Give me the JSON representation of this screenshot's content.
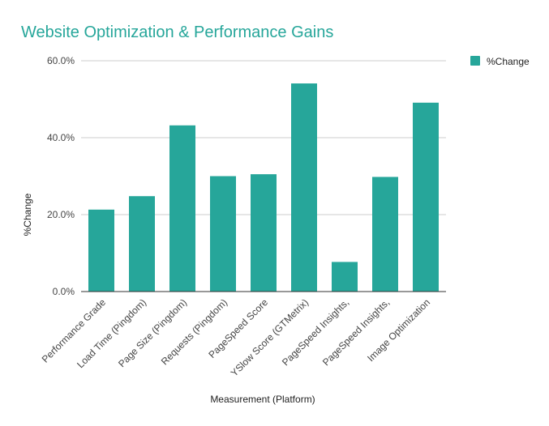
{
  "colors": {
    "bar": "#26a69a",
    "title": "#26a69a",
    "grid": "#cccccc",
    "axis": "#333333"
  },
  "chart_data": {
    "type": "bar",
    "title": "Website Optimization & Performance Gains",
    "xlabel": "Measurement (Platform)",
    "ylabel": "%Change",
    "categories": [
      "Performance Grade",
      "Load Time (Pingdom)",
      "Page Size (Pingdom)",
      "Requests (Pingdom)",
      "PageSpeed Score",
      "YSlow Score (GTMetrix)",
      "PageSpeed Insights,",
      "PageSpeed Insights,",
      "Image Optimization"
    ],
    "series": [
      {
        "name": "%Change",
        "values": [
          21.3,
          24.8,
          43.2,
          30.0,
          30.5,
          54.1,
          7.7,
          29.8,
          49.1
        ]
      }
    ],
    "ylim": [
      0,
      60
    ],
    "yticks": [
      "0.0%",
      "20.0%",
      "40.0%",
      "60.0%"
    ],
    "ytick_values": [
      0,
      20,
      40,
      60
    ],
    "grid": true,
    "legend_position": "right"
  }
}
